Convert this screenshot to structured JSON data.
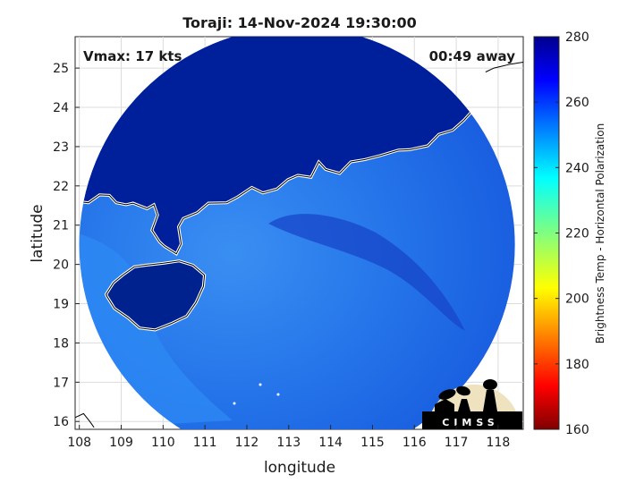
{
  "chart_data": {
    "type": "heatmap",
    "title": "Toraji: 14-Nov-2024 19:30:00",
    "xlabel": "longitude",
    "ylabel": "latitude",
    "xlim": [
      107.9,
      118.6
    ],
    "ylim": [
      15.8,
      25.8
    ],
    "x_ticks": [
      108,
      109,
      110,
      111,
      112,
      113,
      114,
      115,
      116,
      117,
      118
    ],
    "y_ticks": [
      16,
      17,
      18,
      19,
      20,
      21,
      22,
      23,
      24,
      25
    ],
    "grid": true,
    "annotations": {
      "left": "Vmax: 17 kts",
      "right": "00:49 away"
    },
    "colorbar": {
      "label": "Brightness Temp - Horizontal Polarization",
      "range": [
        160,
        280
      ],
      "ticks": [
        160,
        180,
        200,
        220,
        240,
        260,
        280
      ],
      "colormap": "jet"
    },
    "swath": {
      "center_lon": 113.2,
      "center_lat": 20.5,
      "radius_deg": 5.2
    },
    "field_summary": [
      {
        "region": "mainland China (land)",
        "brightness_temp_k": 274
      },
      {
        "region": "Hainan island",
        "brightness_temp_k": 274
      },
      {
        "region": "Gulf of Tonkin / western sea",
        "brightness_temp_k": 248
      },
      {
        "region": "South China Sea (open ocean)",
        "brightness_temp_k": 258
      },
      {
        "region": "storm band near 113E 21N",
        "brightness_temp_k": 266
      }
    ]
  },
  "logo": {
    "text": "CIMSS"
  },
  "colors": {
    "land": "#001f9a",
    "ocean": "#1664e6",
    "coast_ocean": "#2e86f2",
    "coastline": "#ffffff"
  }
}
